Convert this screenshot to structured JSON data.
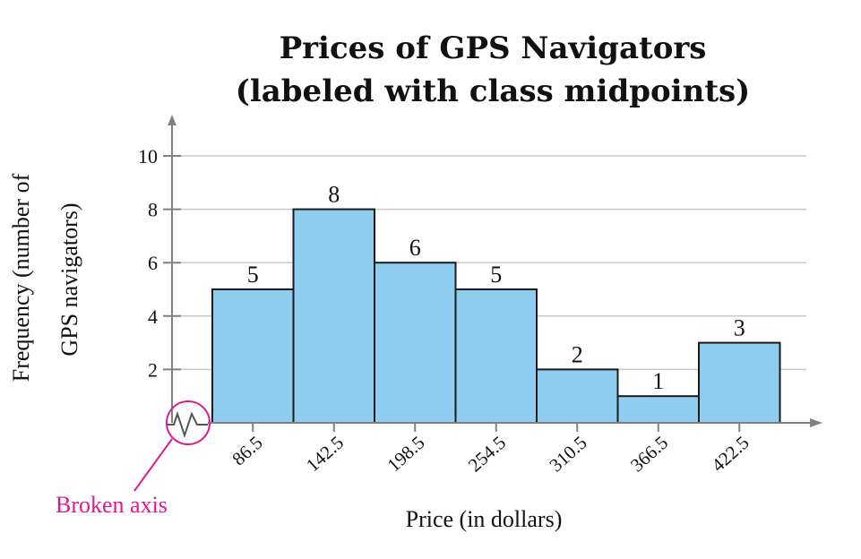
{
  "chart_data": {
    "type": "bar",
    "title": "Prices of GPS Navigators",
    "subtitle": "(labeled with class midpoints)",
    "xlabel": "Price (in dollars)",
    "ylabel_line1": "Frequency (number of",
    "ylabel_line2": "GPS navigators)",
    "categories": [
      "86.5",
      "142.5",
      "198.5",
      "254.5",
      "310.5",
      "366.5",
      "422.5"
    ],
    "values": [
      5,
      8,
      6,
      5,
      2,
      1,
      3
    ],
    "data_labels": [
      "5",
      "8",
      "6",
      "5",
      "2",
      "1",
      "3"
    ],
    "y_ticks": [
      "2",
      "4",
      "6",
      "8",
      "10"
    ],
    "ylim": [
      0,
      10
    ],
    "grid": true,
    "annotation": "Broken axis",
    "colors": {
      "bar_fill": "#8ecdf0",
      "bar_stroke": "#1a1a1a",
      "grid": "#c8c8c8",
      "axis": "#808080",
      "annotation": "#e0198f"
    }
  }
}
